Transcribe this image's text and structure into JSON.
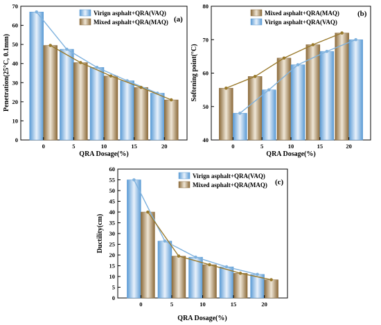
{
  "colors": {
    "vaq": "#5b9bd5",
    "vaq_light": "#e8f1fb",
    "vaq_line": "#7fb2de",
    "maq": "#8b6a3a",
    "maq_light": "#efe6d6",
    "maq_line": "#9a7a2c"
  },
  "chart_data": [
    {
      "type": "bar",
      "panel_label": "(a)",
      "categories": [
        "0",
        "5",
        "10",
        "15",
        "20"
      ],
      "xlabel": "QRA Dosage(%)",
      "ylabel": "Penetration(25°C, 0.1mm)",
      "ylim": [
        0,
        70
      ],
      "yticks": [
        "0",
        "10",
        "20",
        "30",
        "40",
        "50",
        "60",
        "70"
      ],
      "legend_position": "top-right",
      "series": [
        {
          "name": "Virign asphalt+QRA(VAQ)",
          "key": "vaq",
          "values": [
            67.0,
            47.5,
            38.0,
            31.0,
            24.5
          ]
        },
        {
          "name": "Mixed asphalt+QRA(MAQ)",
          "key": "maq",
          "values": [
            49.5,
            40.5,
            33.5,
            27.5,
            21.0
          ]
        }
      ]
    },
    {
      "type": "bar",
      "panel_label": "(b)",
      "categories": [
        "0",
        "5",
        "10",
        "15",
        "20"
      ],
      "xlabel": "QRA Dosage(%)",
      "ylabel": "Softening point(°C)",
      "ylim": [
        40,
        80
      ],
      "yticks": [
        "40",
        "50",
        "60",
        "70",
        "80"
      ],
      "legend_position": "top-left",
      "series": [
        {
          "name": "Mixed asphalt+QRA(MAQ)",
          "key": "maq",
          "values": [
            55.5,
            59.0,
            64.5,
            68.5,
            72.0
          ]
        },
        {
          "name": "Virign asphalt+QRA(VAQ)",
          "key": "vaq",
          "values": [
            48.0,
            55.0,
            62.5,
            66.5,
            70.0
          ]
        }
      ]
    },
    {
      "type": "bar",
      "panel_label": "(c)",
      "categories": [
        "0",
        "5",
        "10",
        "15",
        "20"
      ],
      "xlabel": "QRA Dosage(%)",
      "ylabel": "Ductility(cm)",
      "ylim": [
        0,
        60
      ],
      "yticks": [
        "0",
        "5",
        "10",
        "15",
        "20",
        "25",
        "30",
        "35",
        "40",
        "45",
        "50",
        "55",
        "60"
      ],
      "legend_position": "top-right",
      "series": [
        {
          "name": "Virign asphalt+QRA(VAQ)",
          "key": "vaq",
          "values": [
            55.0,
            26.5,
            19.0,
            14.5,
            11.0
          ]
        },
        {
          "name": "Mixed asphalt+QRA(MAQ)",
          "key": "maq",
          "values": [
            40.0,
            19.5,
            15.5,
            11.5,
            8.5
          ]
        }
      ]
    }
  ]
}
